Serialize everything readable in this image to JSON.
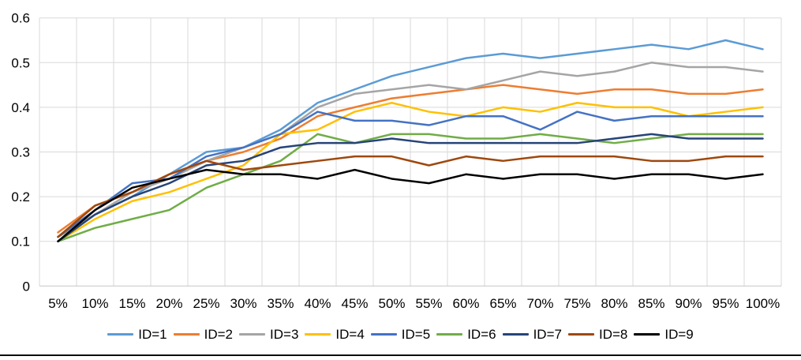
{
  "chart_data": {
    "type": "line",
    "title": "",
    "xlabel": "",
    "ylabel": "",
    "ylim": [
      0,
      0.6
    ],
    "y_tick_step": 0.1,
    "grid": true,
    "gridline_color": "#d9d9d9",
    "axis_line_color": "#c6c6c6",
    "tick_label_color": "#000000",
    "legend_position": "bottom",
    "categories": [
      "5%",
      "10%",
      "15%",
      "20%",
      "25%",
      "30%",
      "35%",
      "40%",
      "45%",
      "50%",
      "55%",
      "60%",
      "65%",
      "70%",
      "75%",
      "80%",
      "85%",
      "90%",
      "95%",
      "100%"
    ],
    "y_tick_labels": [
      "0",
      "0.1",
      "0.2",
      "0.3",
      "0.4",
      "0.5",
      "0.6"
    ],
    "series": [
      {
        "name": "ID=1",
        "color": "#5B9BD5",
        "values": [
          0.11,
          0.16,
          0.2,
          0.25,
          0.3,
          0.31,
          0.35,
          0.41,
          0.44,
          0.47,
          0.49,
          0.51,
          0.52,
          0.51,
          0.52,
          0.53,
          0.54,
          0.53,
          0.55,
          0.53
        ]
      },
      {
        "name": "ID=2",
        "color": "#ED7D31",
        "values": [
          0.12,
          0.18,
          0.21,
          0.25,
          0.28,
          0.3,
          0.33,
          0.38,
          0.4,
          0.42,
          0.43,
          0.44,
          0.45,
          0.44,
          0.43,
          0.44,
          0.44,
          0.43,
          0.43,
          0.44
        ]
      },
      {
        "name": "ID=3",
        "color": "#A5A5A5",
        "values": [
          0.11,
          0.16,
          0.21,
          0.24,
          0.28,
          0.31,
          0.34,
          0.4,
          0.43,
          0.44,
          0.45,
          0.44,
          0.46,
          0.48,
          0.47,
          0.48,
          0.5,
          0.49,
          0.49,
          0.48
        ]
      },
      {
        "name": "ID=4",
        "color": "#FFC000",
        "values": [
          0.1,
          0.15,
          0.19,
          0.21,
          0.24,
          0.27,
          0.34,
          0.35,
          0.39,
          0.41,
          0.39,
          0.38,
          0.4,
          0.39,
          0.41,
          0.4,
          0.4,
          0.38,
          0.39,
          0.4
        ]
      },
      {
        "name": "ID=5",
        "color": "#4472C4",
        "values": [
          0.11,
          0.17,
          0.23,
          0.24,
          0.29,
          0.31,
          0.34,
          0.39,
          0.37,
          0.37,
          0.36,
          0.38,
          0.38,
          0.35,
          0.39,
          0.37,
          0.38,
          0.38,
          0.38,
          0.38
        ]
      },
      {
        "name": "ID=6",
        "color": "#70AD47",
        "values": [
          0.1,
          0.13,
          0.15,
          0.17,
          0.22,
          0.25,
          0.28,
          0.34,
          0.32,
          0.34,
          0.34,
          0.33,
          0.33,
          0.34,
          0.33,
          0.32,
          0.33,
          0.34,
          0.34,
          0.34
        ]
      },
      {
        "name": "ID=7",
        "color": "#264478",
        "values": [
          0.1,
          0.16,
          0.2,
          0.23,
          0.27,
          0.28,
          0.31,
          0.32,
          0.32,
          0.33,
          0.32,
          0.32,
          0.32,
          0.32,
          0.32,
          0.33,
          0.34,
          0.33,
          0.33,
          0.33
        ]
      },
      {
        "name": "ID=8",
        "color": "#9E480E",
        "values": [
          0.11,
          0.18,
          0.21,
          0.25,
          0.28,
          0.26,
          0.27,
          0.28,
          0.29,
          0.29,
          0.27,
          0.29,
          0.28,
          0.29,
          0.29,
          0.29,
          0.28,
          0.28,
          0.29,
          0.29
        ]
      },
      {
        "name": "ID=9",
        "color": "#000000",
        "values": [
          0.1,
          0.17,
          0.22,
          0.24,
          0.26,
          0.25,
          0.25,
          0.24,
          0.26,
          0.24,
          0.23,
          0.25,
          0.24,
          0.25,
          0.25,
          0.24,
          0.25,
          0.25,
          0.24,
          0.25
        ]
      }
    ]
  }
}
